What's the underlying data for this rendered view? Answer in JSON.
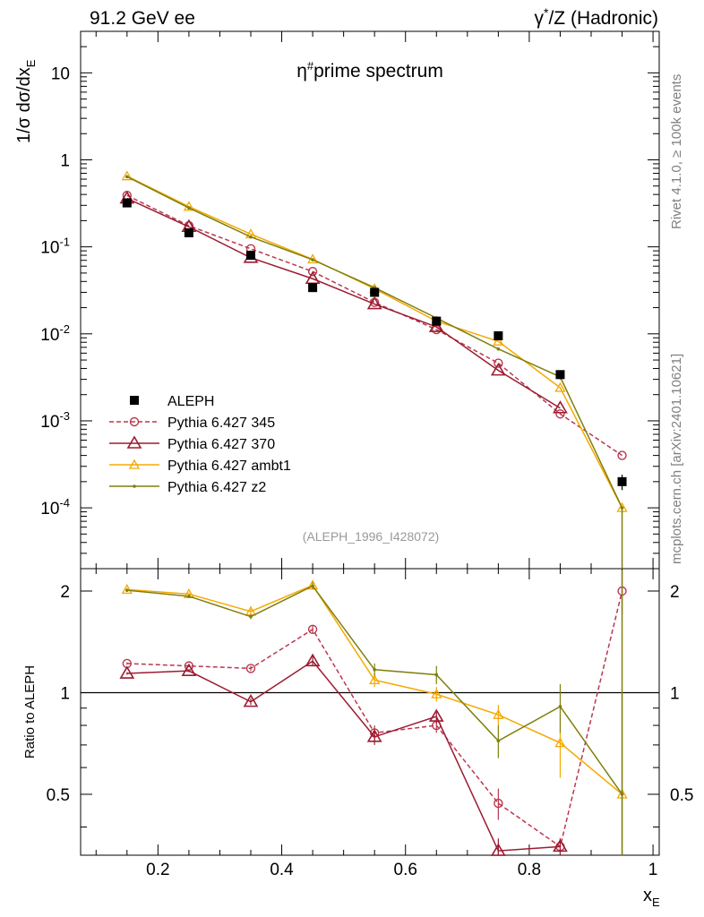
{
  "header": {
    "left": "91.2 GeV ee",
    "right_pre": "γ",
    "right_sup": "*",
    "right_post": "/Z (Hadronic)"
  },
  "side_text": {
    "rivet": "Rivet 4.1.0, ≥ 100k events",
    "mcplots": "mcplots.cern.ch [arXiv:2401.10621]"
  },
  "chart_data": {
    "type": "line",
    "title_pre": "η",
    "title_sup": "#",
    "title_post": "prime spectrum",
    "analysis_id": "(ALEPH_1996_I428072)",
    "ylabel_prefix": "1/σ  dσ/dx",
    "ylabel_sub": "E",
    "xlabel": "x",
    "xlabel_sub": "E",
    "ratio_ylabel": "Ratio to ALEPH",
    "xlim": [
      0.075,
      1.01
    ],
    "main_ylim": [
      2e-05,
      30
    ],
    "main_yscale": "log",
    "ratio_ylim": [
      0.33,
      2.33
    ],
    "ratio_yscale": "log",
    "main_yticks": [
      {
        "value": 0.0001,
        "base": "10",
        "exp": "-4"
      },
      {
        "value": 0.001,
        "base": "10",
        "exp": "-3"
      },
      {
        "value": 0.01,
        "base": "10",
        "exp": "-2"
      },
      {
        "value": 0.1,
        "base": "10",
        "exp": "-1"
      },
      {
        "value": 1,
        "base": "1",
        "exp": ""
      },
      {
        "value": 10,
        "base": "10",
        "exp": ""
      }
    ],
    "ratio_yticks": [
      {
        "value": 0.5,
        "label": "0.5"
      },
      {
        "value": 1,
        "label": "1"
      },
      {
        "value": 2,
        "label": "2"
      }
    ],
    "xticks": [
      {
        "value": 0.2,
        "label": "0.2"
      },
      {
        "value": 0.4,
        "label": "0.4"
      },
      {
        "value": 0.6,
        "label": "0.6"
      },
      {
        "value": 0.8,
        "label": "0.8"
      },
      {
        "value": 1.0,
        "label": "1"
      }
    ],
    "x": [
      0.15,
      0.25,
      0.35,
      0.45,
      0.55,
      0.65,
      0.75,
      0.85,
      0.95
    ],
    "reference": {
      "name": "ALEPH",
      "values": [
        0.32,
        0.145,
        0.08,
        0.034,
        0.03,
        0.014,
        0.0095,
        0.0034,
        0.0002
      ],
      "errors": [
        0.01,
        0.006,
        0.004,
        0.002,
        0.002,
        0.0012,
        0.0009,
        0.0004,
        4e-05
      ],
      "color": "#000000"
    },
    "series": [
      {
        "name": "Pythia 6.427 345",
        "marker": "circle",
        "dashed": true,
        "color": "#b8384f",
        "values": [
          0.39,
          0.175,
          0.095,
          0.052,
          0.023,
          0.0112,
          0.0046,
          0.0012,
          0.0004
        ],
        "ratio": [
          1.22,
          1.2,
          1.18,
          1.54,
          0.76,
          0.8,
          0.47,
          0.35,
          2.0
        ],
        "ratio_err": [
          0.01,
          0.01,
          0.02,
          0.04,
          0.04,
          0.04,
          0.05,
          0.02,
          0.3
        ]
      },
      {
        "name": "Pythia 6.427 370",
        "marker": "triangle",
        "dashed": false,
        "color": "#9b1c31",
        "values": [
          0.36,
          0.17,
          0.075,
          0.043,
          0.022,
          0.012,
          0.0038,
          0.0014,
          null
        ],
        "ratio": [
          1.14,
          1.16,
          0.94,
          1.24,
          0.74,
          0.85,
          0.34,
          0.35,
          null
        ],
        "ratio_err": [
          0.01,
          0.01,
          0.02,
          0.04,
          0.04,
          0.04,
          0.03,
          0.02,
          null
        ]
      },
      {
        "name": "Pythia 6.427 ambt1",
        "marker": "open-triangle",
        "dashed": false,
        "color": "#f5a800",
        "values": [
          0.65,
          0.29,
          0.14,
          0.072,
          0.033,
          0.014,
          0.0082,
          0.0024,
          0.0001
        ],
        "ratio": [
          2.02,
          1.96,
          1.74,
          2.08,
          1.09,
          0.99,
          0.86,
          0.71,
          0.5
        ],
        "ratio_err": [
          0.02,
          0.02,
          0.03,
          0.05,
          0.05,
          0.05,
          0.06,
          0.15,
          0.0
        ]
      },
      {
        "name": "Pythia 6.427 z2",
        "marker": "dot",
        "dashed": false,
        "color": "#7f7f0e",
        "values": [
          0.64,
          0.28,
          0.13,
          0.071,
          0.034,
          0.0152,
          0.0067,
          0.0032,
          0.0001
        ],
        "ratio": [
          2.01,
          1.93,
          1.68,
          2.07,
          1.17,
          1.13,
          0.72,
          0.91,
          0.5
        ],
        "ratio_err": [
          0.02,
          0.02,
          0.03,
          0.05,
          0.05,
          0.07,
          0.08,
          0.15,
          0.5
        ]
      }
    ]
  }
}
